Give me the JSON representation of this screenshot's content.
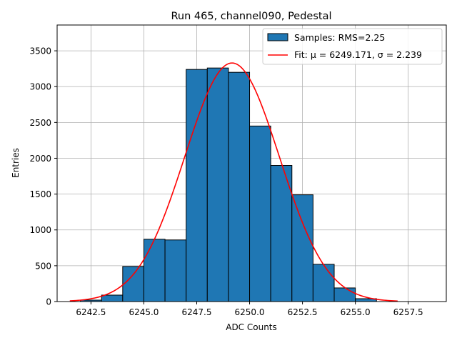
{
  "chart_data": {
    "type": "bar",
    "title": "Run 465, channel090, Pedestal",
    "xlabel": "ADC Counts",
    "ylabel": "Entries",
    "xlim": [
      6240.9,
      6259.3
    ],
    "ylim": [
      0,
      3860
    ],
    "xticks": [
      6242.5,
      6245.0,
      6247.5,
      6250.0,
      6252.5,
      6255.0,
      6257.5
    ],
    "xtick_labels": [
      "6242.5",
      "6245.0",
      "6247.5",
      "6250.0",
      "6252.5",
      "6255.0",
      "6257.5"
    ],
    "yticks": [
      0,
      500,
      1000,
      1500,
      2000,
      2500,
      3000,
      3500
    ],
    "ytick_labels": [
      "0",
      "500",
      "1000",
      "1500",
      "2000",
      "2500",
      "3000",
      "3500"
    ],
    "grid": true,
    "legend_position": "top-right",
    "bin_width": 1,
    "bin_edges": [
      6242,
      6243,
      6244,
      6245,
      6246,
      6247,
      6248,
      6249,
      6250,
      6251,
      6252,
      6253,
      6254,
      6255,
      6256
    ],
    "series": [
      {
        "name": "Samples: RMS=2.25",
        "kind": "histogram",
        "color": "#1f77b4",
        "edgecolor": "#000000",
        "bins": [
          6243,
          6244,
          6245,
          6246,
          6247,
          6248,
          6249,
          6250,
          6251,
          6252,
          6253,
          6254,
          6255,
          6256
        ],
        "values": [
          20,
          90,
          490,
          870,
          860,
          3240,
          3260,
          3200,
          2450,
          1900,
          1490,
          520,
          190,
          40
        ]
      },
      {
        "name": "Fit: μ = 6249.171, σ = 2.239",
        "kind": "line",
        "color": "#ff0000",
        "mu": 6249.171,
        "sigma": 2.239,
        "amplitude": 3330,
        "x_range": [
          6241.5,
          6257.0
        ]
      }
    ],
    "legend": [
      {
        "label": "Samples: RMS=2.25",
        "marker": "patch",
        "color": "#1f77b4"
      },
      {
        "label": "Fit: μ = 6249.171, σ = 2.239",
        "marker": "line",
        "color": "#ff0000"
      }
    ]
  }
}
